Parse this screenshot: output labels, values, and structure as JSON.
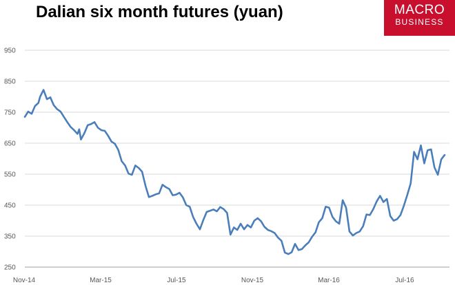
{
  "chart_data": {
    "type": "line",
    "title": "Dalian six month futures (yuan)",
    "xlabel": "",
    "ylabel": "",
    "ylim": [
      250,
      950
    ],
    "yticks": [
      250,
      350,
      450,
      550,
      650,
      750,
      850,
      950
    ],
    "xticks": [
      "Nov-14",
      "Mar-15",
      "Jul-15",
      "Nov-15",
      "Mar-16",
      "Jul-16"
    ],
    "grid": "horizontal",
    "legend": "none",
    "line_color": "#4a7ebb",
    "series": [
      {
        "values": [
          [
            0,
            735
          ],
          [
            2,
            752
          ],
          [
            4,
            745
          ],
          [
            6,
            770
          ],
          [
            8,
            780
          ],
          [
            9,
            800
          ],
          [
            11,
            822
          ],
          [
            13,
            792
          ],
          [
            15,
            798
          ],
          [
            17,
            773
          ],
          [
            19,
            760
          ],
          [
            21,
            752
          ],
          [
            23,
            735
          ],
          [
            25,
            718
          ],
          [
            27,
            702
          ],
          [
            29,
            692
          ],
          [
            31,
            680
          ],
          [
            32,
            695
          ],
          [
            33,
            662
          ],
          [
            35,
            682
          ],
          [
            37,
            708
          ],
          [
            39,
            712
          ],
          [
            41,
            718
          ],
          [
            43,
            700
          ],
          [
            45,
            692
          ],
          [
            47,
            690
          ],
          [
            49,
            674
          ],
          [
            51,
            655
          ],
          [
            53,
            648
          ],
          [
            55,
            628
          ],
          [
            57,
            592
          ],
          [
            59,
            578
          ],
          [
            61,
            552
          ],
          [
            63,
            548
          ],
          [
            65,
            578
          ],
          [
            67,
            570
          ],
          [
            69,
            558
          ],
          [
            71,
            512
          ],
          [
            73,
            476
          ],
          [
            75,
            480
          ],
          [
            77,
            485
          ],
          [
            79,
            488
          ],
          [
            81,
            516
          ],
          [
            83,
            508
          ],
          [
            85,
            502
          ],
          [
            87,
            482
          ],
          [
            89,
            484
          ],
          [
            91,
            490
          ],
          [
            93,
            475
          ],
          [
            95,
            450
          ],
          [
            97,
            445
          ],
          [
            99,
            412
          ],
          [
            101,
            390
          ],
          [
            103,
            372
          ],
          [
            105,
            402
          ],
          [
            107,
            428
          ],
          [
            109,
            432
          ],
          [
            111,
            436
          ],
          [
            113,
            430
          ],
          [
            115,
            444
          ],
          [
            117,
            437
          ],
          [
            119,
            425
          ],
          [
            121,
            355
          ],
          [
            123,
            378
          ],
          [
            125,
            370
          ],
          [
            127,
            390
          ],
          [
            129,
            372
          ],
          [
            131,
            386
          ],
          [
            133,
            378
          ],
          [
            135,
            400
          ],
          [
            137,
            408
          ],
          [
            139,
            398
          ],
          [
            141,
            380
          ],
          [
            143,
            370
          ],
          [
            145,
            366
          ],
          [
            147,
            360
          ],
          [
            149,
            345
          ],
          [
            151,
            335
          ],
          [
            153,
            297
          ],
          [
            155,
            292
          ],
          [
            157,
            298
          ],
          [
            159,
            325
          ],
          [
            161,
            305
          ],
          [
            163,
            308
          ],
          [
            165,
            320
          ],
          [
            167,
            330
          ],
          [
            169,
            348
          ],
          [
            171,
            362
          ],
          [
            173,
            395
          ],
          [
            175,
            408
          ],
          [
            177,
            445
          ],
          [
            179,
            442
          ],
          [
            181,
            412
          ],
          [
            183,
            398
          ],
          [
            185,
            390
          ],
          [
            187,
            466
          ],
          [
            189,
            442
          ],
          [
            191,
            365
          ],
          [
            193,
            352
          ],
          [
            195,
            360
          ],
          [
            197,
            365
          ],
          [
            199,
            382
          ],
          [
            201,
            420
          ],
          [
            203,
            418
          ],
          [
            205,
            437
          ],
          [
            207,
            462
          ],
          [
            209,
            480
          ],
          [
            211,
            460
          ],
          [
            213,
            470
          ],
          [
            215,
            415
          ],
          [
            217,
            400
          ],
          [
            219,
            405
          ],
          [
            221,
            418
          ],
          [
            223,
            448
          ],
          [
            225,
            483
          ],
          [
            227,
            520
          ],
          [
            229,
            622
          ],
          [
            231,
            598
          ],
          [
            233,
            643
          ],
          [
            235,
            585
          ],
          [
            237,
            627
          ],
          [
            239,
            630
          ],
          [
            241,
            572
          ],
          [
            243,
            548
          ],
          [
            245,
            598
          ],
          [
            247,
            612
          ]
        ]
      }
    ]
  },
  "logo": {
    "line1": "MACRO",
    "line2": "BUSINESS"
  }
}
